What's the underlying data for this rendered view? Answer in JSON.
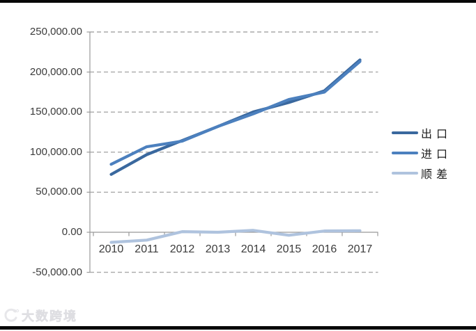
{
  "frame": {
    "watermark_text": "大数跨境"
  },
  "chart_data": {
    "type": "line",
    "title": "",
    "xlabel": "",
    "ylabel": "",
    "categories": [
      "2010",
      "2011",
      "2012",
      "2013",
      "2014",
      "2015",
      "2016",
      "2017"
    ],
    "series": [
      {
        "name": "出口",
        "legend_label": "出 口",
        "color": "#3A689E",
        "values": [
          72237,
          96906,
          114529,
          132033,
          150217,
          162017,
          176581,
          215119
        ]
      },
      {
        "name": "进口",
        "legend_label": "进 口",
        "color": "#4C80BE",
        "values": [
          84839,
          106750,
          113780,
          132033,
          147849,
          165776,
          174978,
          213215
        ]
      },
      {
        "name": "顺差",
        "legend_label": "顺 差",
        "color": "#AFC3DE",
        "values": [
          -12602,
          -9844,
          749,
          0,
          2368,
          -3759,
          1602,
          1904
        ]
      }
    ],
    "y_axis": {
      "min": -50000,
      "max": 250000,
      "step": 50000,
      "tick_labels_top_to_bottom": [
        "250,000.00",
        "200,000.00",
        "150,000.00",
        "100,000.00",
        "50,000.00",
        "0.00",
        "-50,000.00"
      ]
    },
    "grid": "dashed-horizontal",
    "legend_position": "right",
    "colors": {
      "gridline": "#A8A8A8",
      "axis": "#999999",
      "tick_text": "#3B3B3B"
    }
  }
}
